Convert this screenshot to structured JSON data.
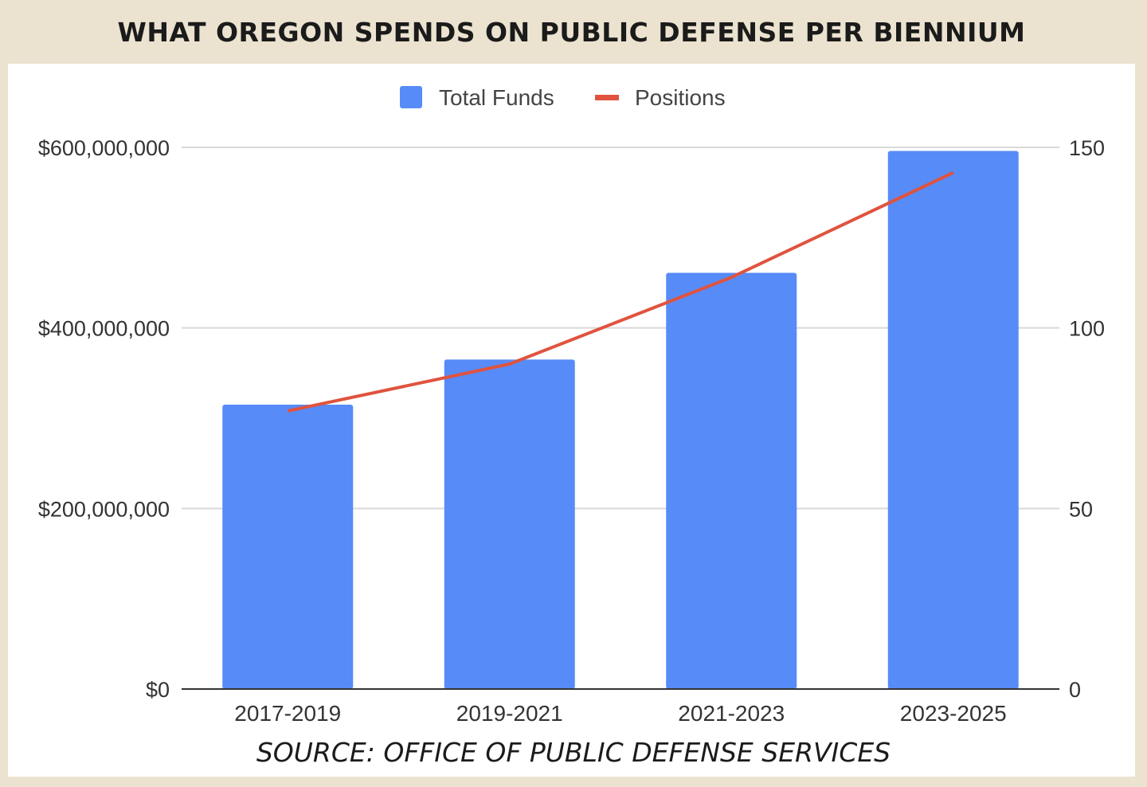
{
  "title": "WHAT OREGON SPENDS ON PUBLIC DEFENSE PER BIENNIUM",
  "source": "SOURCE: OFFICE OF PUBLIC DEFENSE SERVICES",
  "chart_data": {
    "type": "bar",
    "categories": [
      "2017-2019",
      "2019-2021",
      "2021-2023",
      "2023-2025"
    ],
    "series": [
      {
        "name": "Total Funds",
        "type": "bar",
        "axis": "left",
        "color": "#578bf8",
        "values": [
          315000000,
          365000000,
          461000000,
          596000000
        ]
      },
      {
        "name": "Positions",
        "type": "line",
        "axis": "right",
        "color": "#e0533e",
        "values": [
          77,
          90,
          114,
          143
        ]
      }
    ],
    "y_left": {
      "range": [
        0,
        600000000
      ],
      "ticks": [
        "$0",
        "$200,000,000",
        "$400,000,000",
        "$600,000,000"
      ]
    },
    "y_right": {
      "range": [
        0,
        150
      ],
      "ticks": [
        "0",
        "50",
        "100",
        "150"
      ]
    },
    "grid": true,
    "legend": "top"
  }
}
